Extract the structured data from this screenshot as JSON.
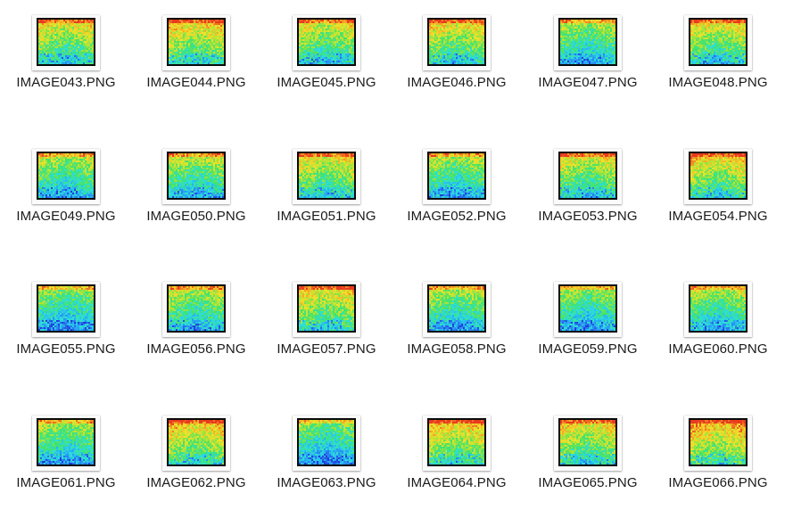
{
  "files": [
    {
      "name": "IMAGE043.PNG",
      "icon": "heatmap-image-icon"
    },
    {
      "name": "IMAGE044.PNG",
      "icon": "heatmap-image-icon"
    },
    {
      "name": "IMAGE045.PNG",
      "icon": "heatmap-image-icon"
    },
    {
      "name": "IMAGE046.PNG",
      "icon": "heatmap-image-icon"
    },
    {
      "name": "IMAGE047.PNG",
      "icon": "heatmap-image-icon"
    },
    {
      "name": "IMAGE048.PNG",
      "icon": "heatmap-image-icon"
    },
    {
      "name": "IMAGE049.PNG",
      "icon": "heatmap-image-icon"
    },
    {
      "name": "IMAGE050.PNG",
      "icon": "heatmap-image-icon"
    },
    {
      "name": "IMAGE051.PNG",
      "icon": "heatmap-image-icon"
    },
    {
      "name": "IMAGE052.PNG",
      "icon": "heatmap-image-icon"
    },
    {
      "name": "IMAGE053.PNG",
      "icon": "heatmap-image-icon"
    },
    {
      "name": "IMAGE054.PNG",
      "icon": "heatmap-image-icon"
    },
    {
      "name": "IMAGE055.PNG",
      "icon": "heatmap-image-icon"
    },
    {
      "name": "IMAGE056.PNG",
      "icon": "heatmap-image-icon"
    },
    {
      "name": "IMAGE057.PNG",
      "icon": "heatmap-image-icon"
    },
    {
      "name": "IMAGE058.PNG",
      "icon": "heatmap-image-icon"
    },
    {
      "name": "IMAGE059.PNG",
      "icon": "heatmap-image-icon"
    },
    {
      "name": "IMAGE060.PNG",
      "icon": "heatmap-image-icon"
    },
    {
      "name": "IMAGE061.PNG",
      "icon": "heatmap-image-icon"
    },
    {
      "name": "IMAGE062.PNG",
      "icon": "heatmap-image-icon"
    },
    {
      "name": "IMAGE063.PNG",
      "icon": "heatmap-image-icon"
    },
    {
      "name": "IMAGE064.PNG",
      "icon": "heatmap-image-icon"
    },
    {
      "name": "IMAGE065.PNG",
      "icon": "heatmap-image-icon"
    },
    {
      "name": "IMAGE066.PNG",
      "icon": "heatmap-image-icon"
    }
  ],
  "colors": {
    "background": "#ffffff",
    "label_text": "#1a1a1a",
    "thumbnail_frame": "#0a0a0a",
    "heatmap_palette": [
      "#1f3fd8",
      "#2a7bf0",
      "#26b7f2",
      "#2fe0d6",
      "#3fe36c",
      "#a8e43a",
      "#f2e22a",
      "#f5a423",
      "#e83a1f"
    ]
  }
}
